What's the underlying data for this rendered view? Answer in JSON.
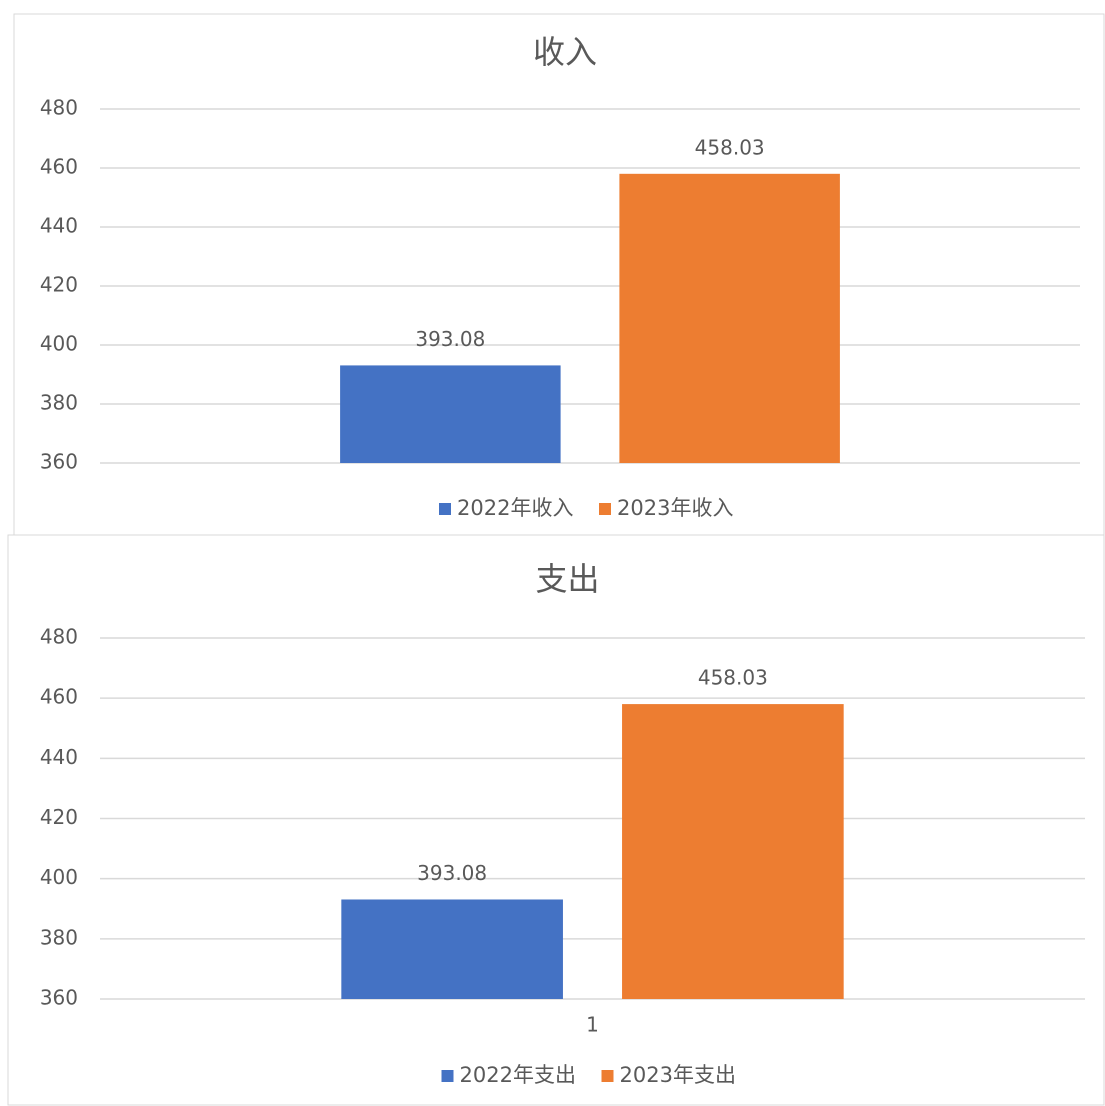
{
  "chart_data": [
    {
      "type": "bar",
      "title": "收入",
      "categories": [
        null
      ],
      "series": [
        {
          "name": "2022年收入",
          "color": "#4472c4",
          "values": [
            393.08
          ]
        },
        {
          "name": "2023年收入",
          "color": "#ed7d31",
          "values": [
            458.03
          ]
        }
      ],
      "ylim": [
        360,
        480
      ],
      "yticks": [
        360,
        380,
        400,
        420,
        440,
        460,
        480
      ],
      "grid": true,
      "legend": "bottom"
    },
    {
      "type": "bar",
      "title": "支出",
      "categories": [
        "1"
      ],
      "series": [
        {
          "name": "2022年支出",
          "color": "#4472c4",
          "values": [
            393.08
          ]
        },
        {
          "name": "2023年支出",
          "color": "#ed7d31",
          "values": [
            458.03
          ]
        }
      ],
      "ylim": [
        360,
        480
      ],
      "yticks": [
        360,
        380,
        400,
        420,
        440,
        460,
        480
      ],
      "grid": true,
      "legend": "bottom"
    }
  ]
}
